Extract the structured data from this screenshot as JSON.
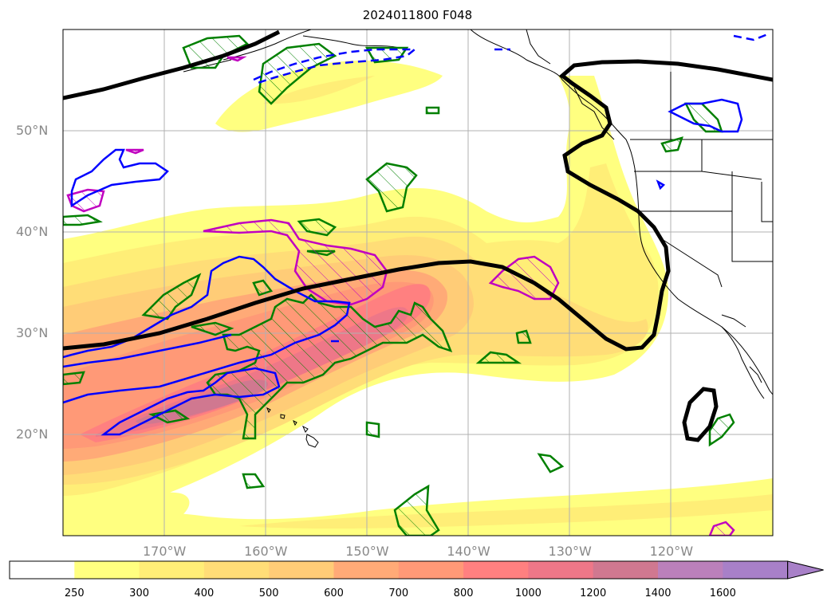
{
  "title": "2024011800 F048",
  "map": {
    "projection": "plate-carree",
    "region": "North Pacific / western North America",
    "lon_range": [
      -180,
      -110
    ],
    "lat_range": [
      10,
      60
    ],
    "gridlines": true,
    "lat_ticks": [
      {
        "value": 20,
        "label": "20°N"
      },
      {
        "value": 30,
        "label": "30°N"
      },
      {
        "value": 40,
        "label": "40°N"
      },
      {
        "value": 50,
        "label": "50°N"
      }
    ],
    "lon_ticks": [
      {
        "value": -170,
        "label": "170°W"
      },
      {
        "value": -160,
        "label": "160°W"
      },
      {
        "value": -150,
        "label": "150°W"
      },
      {
        "value": -140,
        "label": "140°W"
      },
      {
        "value": -130,
        "label": "130°W"
      },
      {
        "value": -120,
        "label": "120°W"
      }
    ],
    "layers": [
      {
        "name": "filled field (shaded)",
        "style": "filled contours"
      },
      {
        "name": "black thick contour",
        "color": "#000000"
      },
      {
        "name": "blue contour",
        "color": "#0000ff"
      },
      {
        "name": "magenta hatched contour",
        "color": "#c000c0"
      },
      {
        "name": "green hatched contour",
        "color": "#008000"
      }
    ]
  },
  "colorbar": {
    "extend": "max",
    "levels": [
      {
        "label": "250",
        "color": "#ffffff"
      },
      {
        "label": "300",
        "color": "#ffff80"
      },
      {
        "label": "400",
        "color": "#ffee77"
      },
      {
        "label": "500",
        "color": "#ffdd77"
      },
      {
        "label": "600",
        "color": "#ffcc77"
      },
      {
        "label": "700",
        "color": "#ffaa77"
      },
      {
        "label": "800",
        "color": "#ff9977"
      },
      {
        "label": "1000",
        "color": "#ff8080"
      },
      {
        "label": "1200",
        "color": "#ee7788"
      },
      {
        "label": "1400",
        "color": "#d07890"
      },
      {
        "label": "1600",
        "color": "#bb80bb"
      },
      {
        "label": "",
        "color": "#a880c8"
      }
    ],
    "extend_color": "#a880c8"
  }
}
